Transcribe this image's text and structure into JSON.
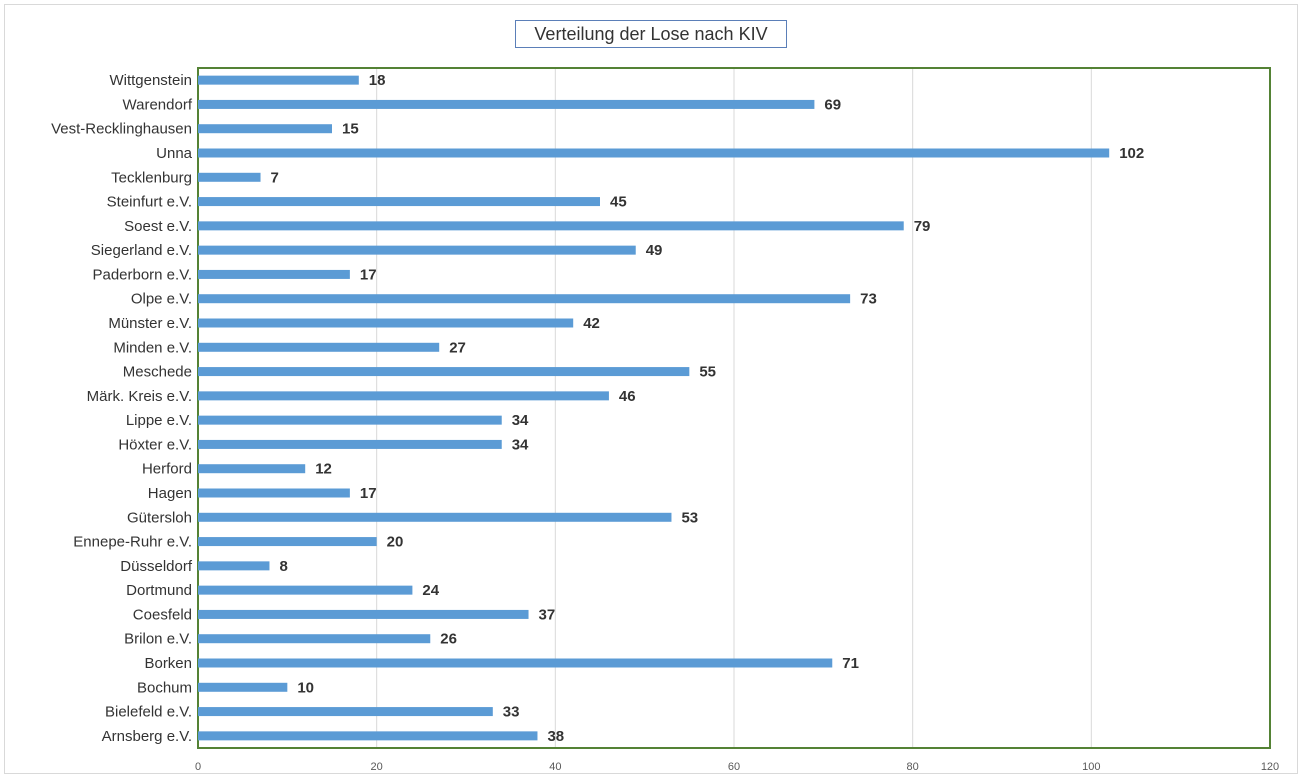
{
  "chart_data": {
    "type": "bar",
    "orientation": "horizontal",
    "title": "Verteilung der Lose nach KIV",
    "xlabel": "",
    "ylabel": "",
    "xlim": [
      0,
      120
    ],
    "x_ticks": [
      "0",
      "20",
      "40",
      "60",
      "80",
      "100",
      "120"
    ],
    "grid": "vertical",
    "legend": "none",
    "bar_color": "#5b9bd5",
    "plot_border_color": "#548235",
    "categories": [
      "Wittgenstein",
      "Warendorf",
      "Vest-Recklinghausen",
      "Unna",
      "Tecklenburg",
      "Steinfurt e.V.",
      "Soest e.V.",
      "Siegerland e.V.",
      "Paderborn e.V.",
      "Olpe e.V.",
      "Münster e.V.",
      "Minden e.V.",
      "Meschede",
      "Märk. Kreis e.V.",
      "Lippe e.V.",
      "Höxter e.V.",
      "Herford",
      "Hagen",
      "Gütersloh",
      "Ennepe-Ruhr e.V.",
      "Düsseldorf",
      "Dortmund",
      "Coesfeld",
      "Brilon e.V.",
      "Borken",
      "Bochum",
      "Bielefeld e.V.",
      "Arnsberg e.V."
    ],
    "values": [
      18,
      69,
      15,
      102,
      7,
      45,
      79,
      49,
      17,
      73,
      42,
      27,
      55,
      46,
      34,
      34,
      12,
      17,
      53,
      20,
      8,
      24,
      37,
      26,
      71,
      10,
      33,
      38
    ]
  }
}
